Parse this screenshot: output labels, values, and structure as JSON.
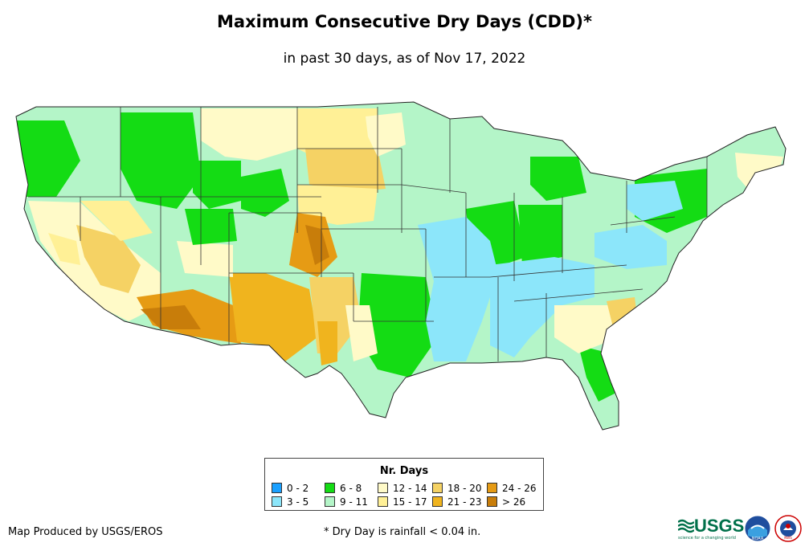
{
  "title": "Maximum Consecutive Dry Days (CDD)*",
  "subtitle": "in past 30 days, as of Nov 17, 2022",
  "legend": {
    "title": "Nr. Days",
    "items": [
      {
        "label": "0 - 2",
        "color": "#1aa0ff"
      },
      {
        "label": "3 - 5",
        "color": "#8ce6fa"
      },
      {
        "label": "6 - 8",
        "color": "#14dc14"
      },
      {
        "label": "9 - 11",
        "color": "#b4f5c8"
      },
      {
        "label": "12 - 14",
        "color": "#fffac8"
      },
      {
        "label": "15 - 17",
        "color": "#fff096"
      },
      {
        "label": "18 - 20",
        "color": "#f5d264"
      },
      {
        "label": "21 - 23",
        "color": "#f0b41e"
      },
      {
        "label": "24 - 26",
        "color": "#e69b14"
      },
      {
        "label": "> 26",
        "color": "#c87d0a"
      }
    ]
  },
  "footer": {
    "credit": "Map Produced by USGS/EROS",
    "note": "* Dry Day is rainfall < 0.04 in."
  },
  "logos": {
    "usgs": "USGS",
    "usgs_tagline": "science for a changing world",
    "noaa": "NOAA",
    "nws": "NWS"
  }
}
